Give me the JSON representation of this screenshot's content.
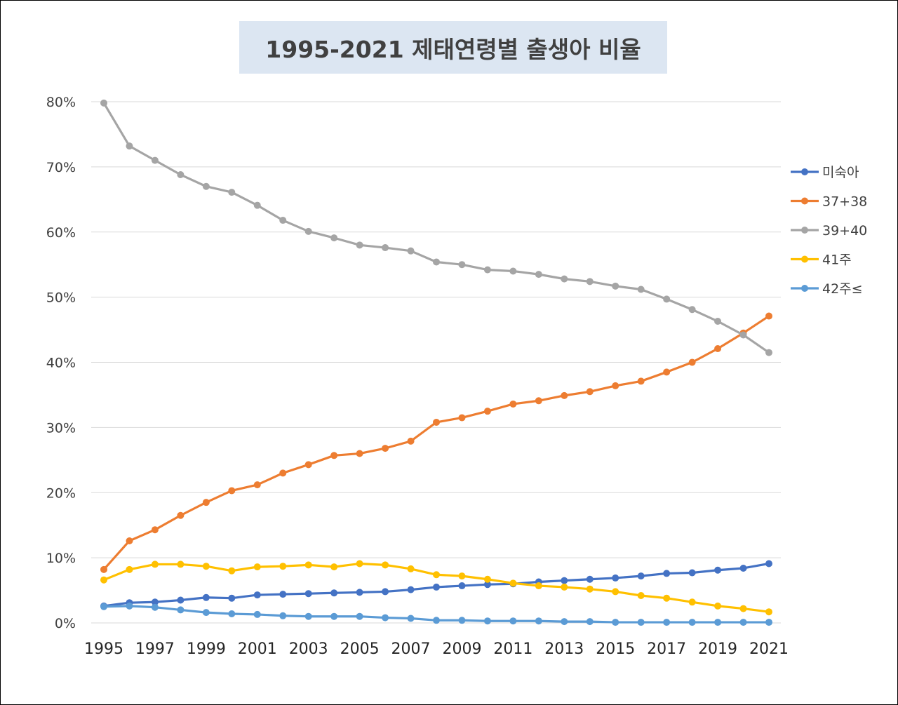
{
  "chart_data": {
    "type": "line",
    "title": "1995-2021 제태연령별 출생아 비율",
    "xlabel": "",
    "ylabel": "",
    "ylim": [
      0,
      80
    ],
    "y_ticks": [
      {
        "value": 0,
        "label": "0%"
      },
      {
        "value": 10,
        "label": "10%"
      },
      {
        "value": 20,
        "label": "20%"
      },
      {
        "value": 30,
        "label": "30%"
      },
      {
        "value": 40,
        "label": "40%"
      },
      {
        "value": 50,
        "label": "50%"
      },
      {
        "value": 60,
        "label": "60%"
      },
      {
        "value": 70,
        "label": "70%"
      },
      {
        "value": 80,
        "label": "80%"
      }
    ],
    "x": [
      1995,
      1996,
      1997,
      1998,
      1999,
      2000,
      2001,
      2002,
      2003,
      2004,
      2005,
      2006,
      2007,
      2008,
      2009,
      2010,
      2011,
      2012,
      2013,
      2014,
      2015,
      2016,
      2017,
      2018,
      2019,
      2020,
      2021
    ],
    "x_tick_labels": [
      "1995",
      "1997",
      "1999",
      "2001",
      "2003",
      "2005",
      "2007",
      "2009",
      "2011",
      "2013",
      "2015",
      "2017",
      "2019",
      "2021"
    ],
    "grid": "horizontal",
    "legend_position": "right",
    "series": [
      {
        "name": "미숙아",
        "color": "#4472c4",
        "values": [
          2.6,
          3.1,
          3.2,
          3.5,
          3.9,
          3.8,
          4.3,
          4.4,
          4.5,
          4.6,
          4.7,
          4.8,
          5.1,
          5.5,
          5.7,
          5.9,
          6.0,
          6.3,
          6.5,
          6.7,
          6.9,
          7.2,
          7.6,
          7.7,
          8.1,
          8.4,
          9.1
        ]
      },
      {
        "name": "37+38",
        "color": "#ed7d31",
        "values": [
          8.2,
          12.6,
          14.3,
          16.5,
          18.5,
          20.3,
          21.2,
          23.0,
          24.3,
          25.7,
          26.0,
          26.8,
          27.9,
          30.8,
          31.5,
          32.5,
          33.6,
          34.1,
          34.9,
          35.5,
          36.4,
          37.1,
          38.5,
          40.0,
          42.1,
          44.5,
          47.1
        ]
      },
      {
        "name": "39+40",
        "color": "#a5a5a5",
        "values": [
          79.8,
          73.2,
          71.0,
          68.8,
          67.0,
          66.1,
          64.1,
          61.8,
          60.1,
          59.1,
          58.0,
          57.6,
          57.1,
          55.4,
          55.0,
          54.2,
          54.0,
          53.5,
          52.8,
          52.4,
          51.7,
          51.2,
          49.7,
          48.1,
          46.3,
          44.2,
          41.5
        ]
      },
      {
        "name": "41주",
        "color": "#ffc000",
        "values": [
          6.6,
          8.2,
          9.0,
          9.0,
          8.7,
          8.0,
          8.6,
          8.7,
          8.9,
          8.6,
          9.1,
          8.9,
          8.3,
          7.4,
          7.2,
          6.7,
          6.1,
          5.7,
          5.5,
          5.2,
          4.8,
          4.2,
          3.8,
          3.2,
          2.6,
          2.2,
          1.7
        ]
      },
      {
        "name": "42주≤",
        "color": "#5b9bd5",
        "values": [
          2.5,
          2.6,
          2.4,
          2.0,
          1.6,
          1.4,
          1.3,
          1.1,
          1.0,
          1.0,
          1.0,
          0.8,
          0.7,
          0.4,
          0.4,
          0.3,
          0.3,
          0.3,
          0.2,
          0.2,
          0.1,
          0.1,
          0.1,
          0.1,
          0.1,
          0.1,
          0.1
        ]
      }
    ]
  }
}
